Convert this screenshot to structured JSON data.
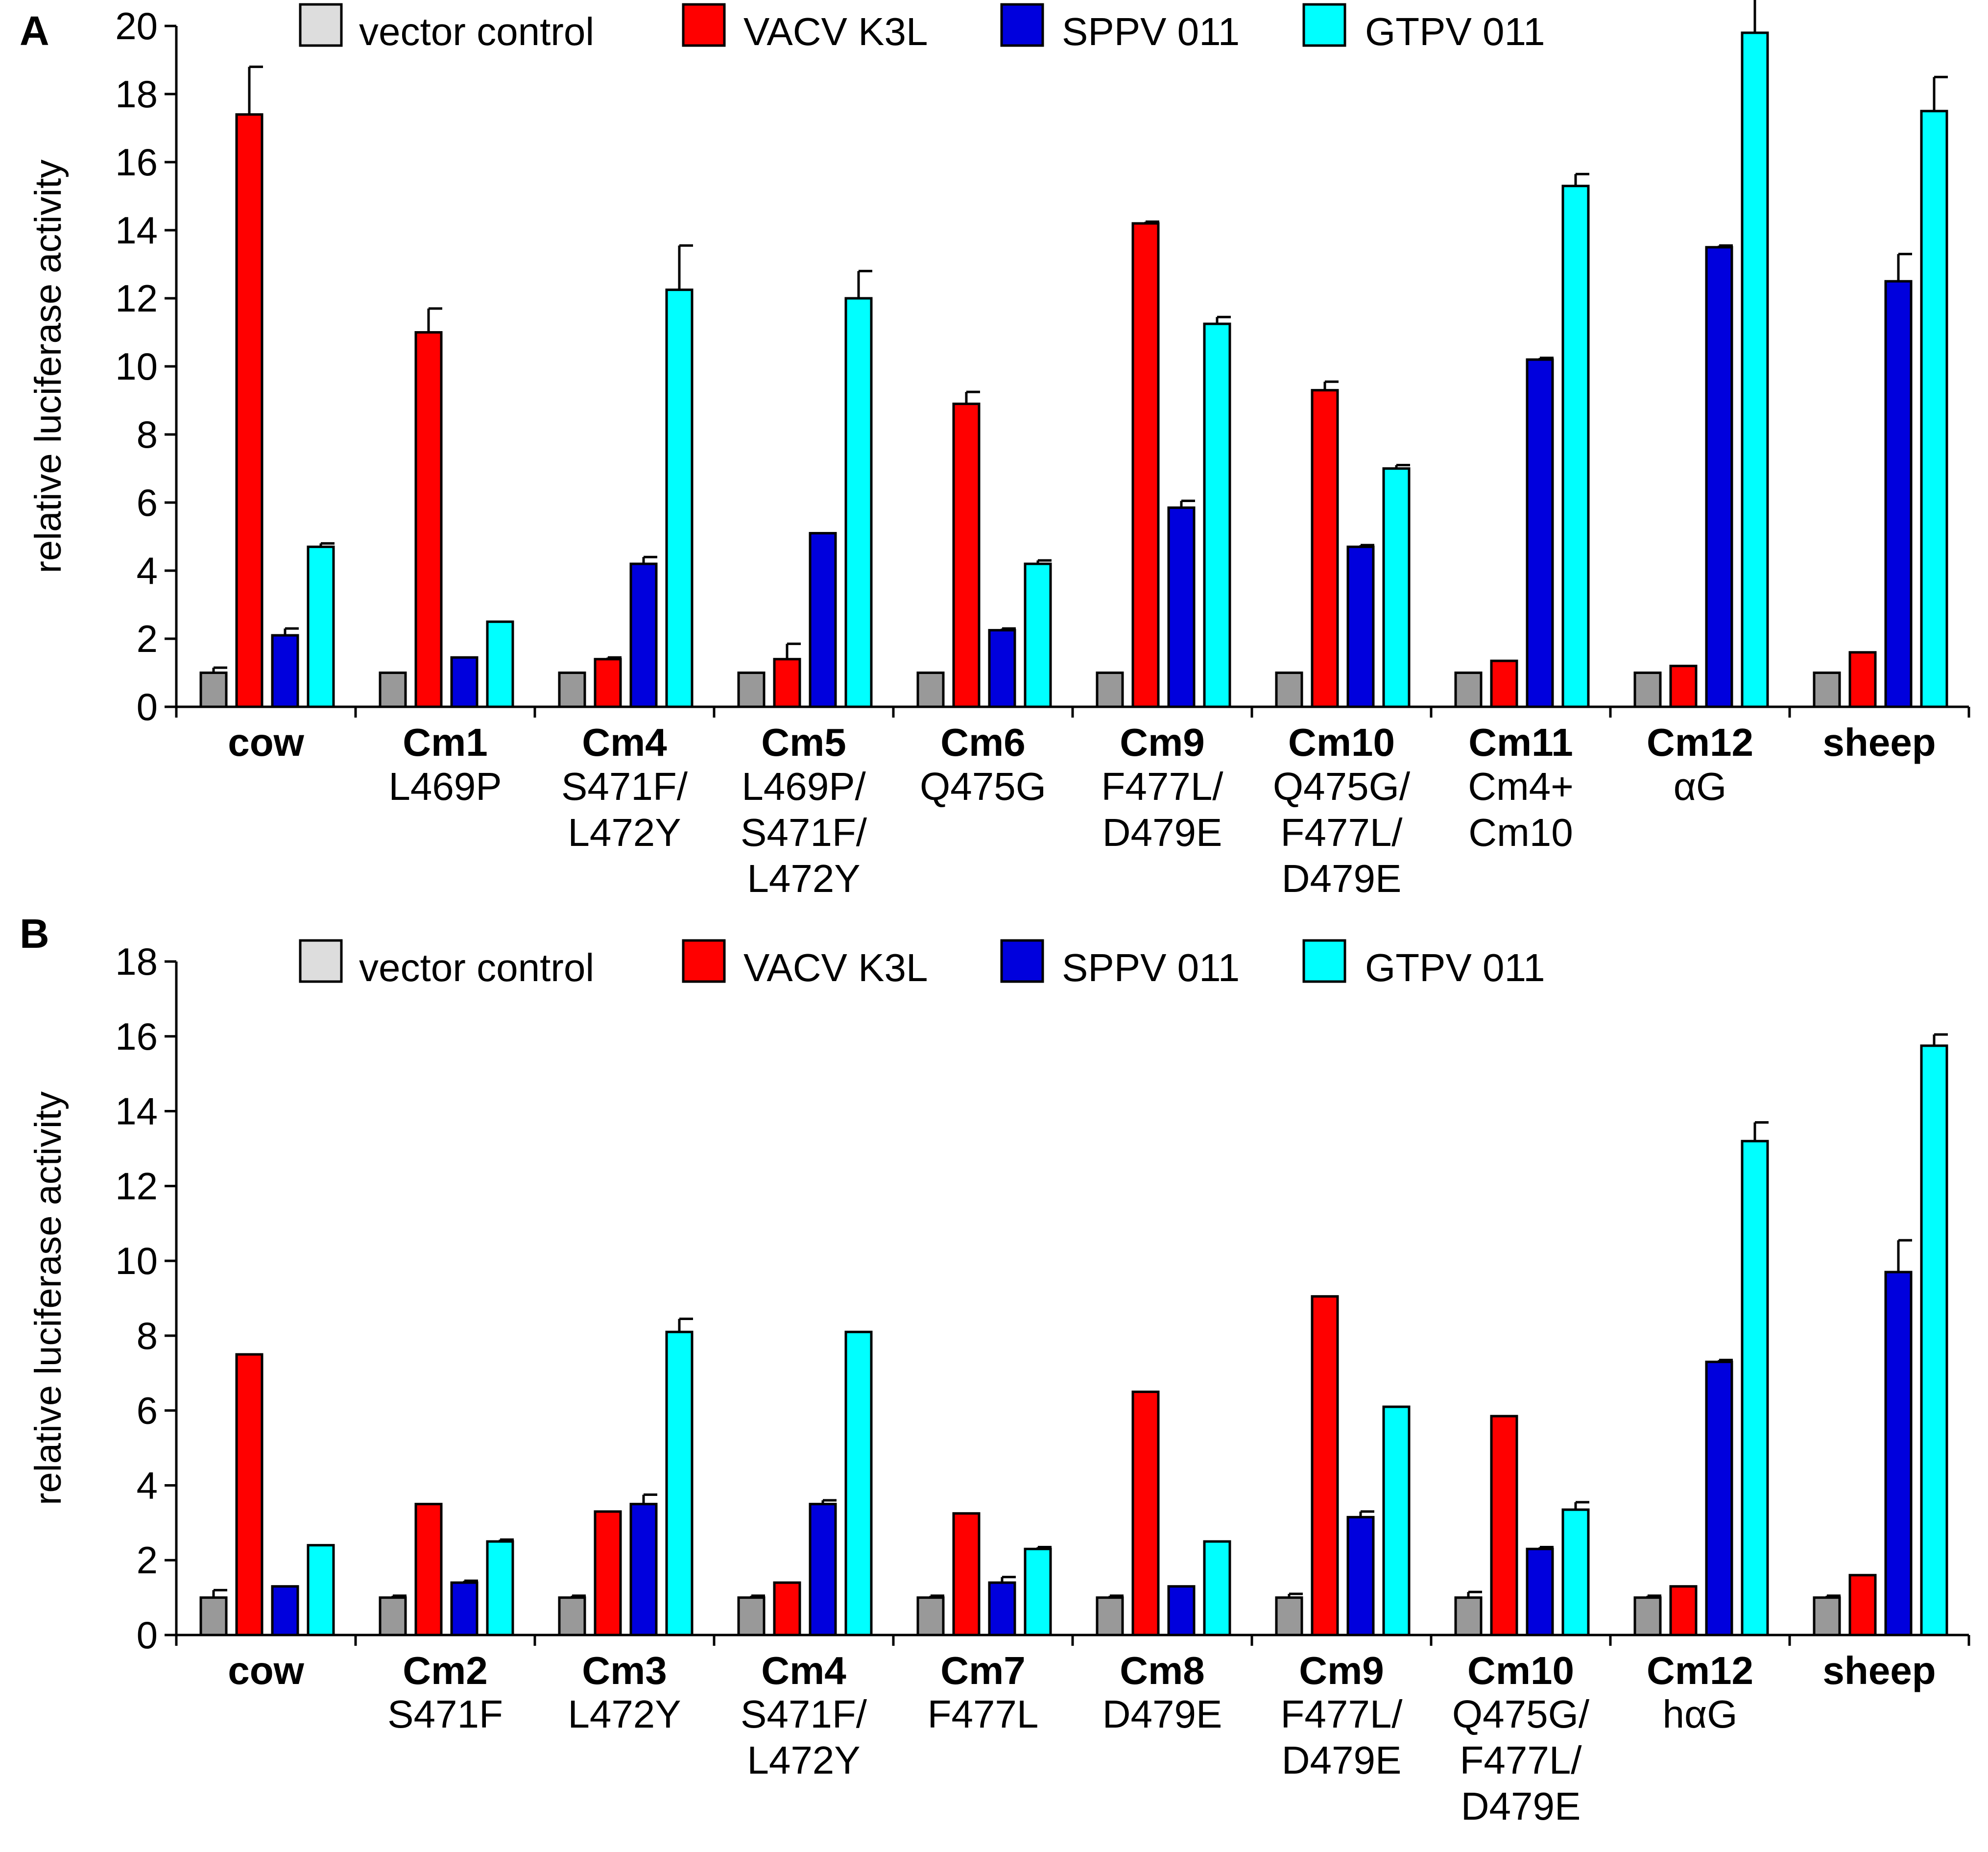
{
  "legend": {
    "entries": [
      "vector control",
      "VACV K3L",
      "SPPV 011",
      "GTPV 011"
    ],
    "colors": [
      "#999999",
      "#ff0000",
      "#0000dd",
      "#00ffff"
    ],
    "swatch_colors": [
      "#dddddd",
      "#ff0000",
      "#0000dd",
      "#00ffff"
    ]
  },
  "chart_data": [
    {
      "panel": "A",
      "type": "bar",
      "ylabel": "relative luciferase activity",
      "ylim": [
        0,
        20
      ],
      "yticks": [
        0,
        2,
        4,
        6,
        8,
        10,
        12,
        14,
        16,
        18,
        20
      ],
      "legend_position": "top",
      "categories": [
        "cow",
        "Cm1",
        "Cm4",
        "Cm5",
        "Cm6",
        "Cm9",
        "Cm10",
        "Cm11",
        "Cm12",
        "sheep"
      ],
      "sublabels": [
        [],
        [
          "L469P"
        ],
        [
          "S471F/",
          "L472Y"
        ],
        [
          "L469P/",
          "S471F/",
          "L472Y"
        ],
        [
          "Q475G"
        ],
        [
          "F477L/",
          "D479E"
        ],
        [
          "Q475G/",
          "F477L/",
          "D479E"
        ],
        [
          "Cm4+",
          "Cm10"
        ],
        [
          "αG"
        ],
        []
      ],
      "series": [
        {
          "name": "vector control",
          "values": [
            1.0,
            1.0,
            1.0,
            1.0,
            1.0,
            1.0,
            1.0,
            1.0,
            1.0,
            1.0
          ],
          "errors": [
            0.15,
            0,
            0,
            0,
            0,
            0,
            0,
            0,
            0,
            0
          ]
        },
        {
          "name": "VACV K3L",
          "values": [
            17.4,
            11.0,
            1.4,
            1.4,
            8.9,
            14.2,
            9.3,
            1.35,
            1.2,
            1.6
          ],
          "errors": [
            1.4,
            0.7,
            0.05,
            0.45,
            0.35,
            0.05,
            0.25,
            0,
            0,
            0
          ]
        },
        {
          "name": "SPPV 011",
          "values": [
            2.1,
            1.45,
            4.2,
            5.1,
            2.25,
            5.85,
            4.7,
            10.2,
            13.5,
            12.5
          ],
          "errors": [
            0.2,
            0,
            0.2,
            0,
            0.05,
            0.2,
            0.05,
            0.05,
            0.05,
            0.8
          ]
        },
        {
          "name": "GTPV 011",
          "values": [
            4.7,
            2.5,
            12.25,
            12.0,
            4.2,
            11.25,
            7.0,
            15.3,
            19.8,
            17.5
          ],
          "errors": [
            0.1,
            0,
            1.3,
            0.8,
            0.1,
            0.2,
            0.1,
            0.35,
            1.1,
            1.0
          ]
        }
      ]
    },
    {
      "panel": "B",
      "type": "bar",
      "ylabel": "relative luciferase activity",
      "ylim": [
        0,
        18
      ],
      "yticks": [
        0,
        2,
        4,
        6,
        8,
        10,
        12,
        14,
        16,
        18
      ],
      "legend_position": "top",
      "categories": [
        "cow",
        "Cm2",
        "Cm3",
        "Cm4",
        "Cm7",
        "Cm8",
        "Cm9",
        "Cm10",
        "Cm12",
        "sheep"
      ],
      "sublabels": [
        [],
        [
          "S471F"
        ],
        [
          "L472Y"
        ],
        [
          "S471F/",
          "L472Y"
        ],
        [
          "F477L"
        ],
        [
          "D479E"
        ],
        [
          "F477L/",
          "D479E"
        ],
        [
          "Q475G/",
          "F477L/",
          "D479E"
        ],
        [
          "hαG"
        ],
        []
      ],
      "series": [
        {
          "name": "vector control",
          "values": [
            1.0,
            1.0,
            1.0,
            1.0,
            1.0,
            1.0,
            1.0,
            1.0,
            1.0,
            1.0
          ],
          "errors": [
            0.2,
            0.05,
            0.05,
            0.05,
            0.05,
            0.05,
            0.1,
            0.15,
            0.05,
            0.05
          ]
        },
        {
          "name": "VACV K3L",
          "values": [
            7.5,
            3.5,
            3.3,
            1.4,
            3.25,
            6.5,
            9.05,
            5.85,
            1.3,
            1.6
          ]
        },
        {
          "name": "SPPV 011",
          "values": [
            1.3,
            1.4,
            3.5,
            3.5,
            1.4,
            1.3,
            3.15,
            2.3,
            7.3,
            9.7
          ],
          "errors": [
            0,
            0.05,
            0.25,
            0.1,
            0.15,
            0,
            0.15,
            0.05,
            0.05,
            0.85
          ]
        },
        {
          "name": "GTPV 011",
          "values": [
            2.4,
            2.5,
            8.1,
            8.1,
            2.3,
            2.5,
            6.1,
            3.35,
            13.2,
            15.75
          ],
          "errors": [
            0,
            0.05,
            0.35,
            0,
            0.05,
            0,
            0,
            0.2,
            0.5,
            0.3
          ]
        }
      ]
    }
  ]
}
